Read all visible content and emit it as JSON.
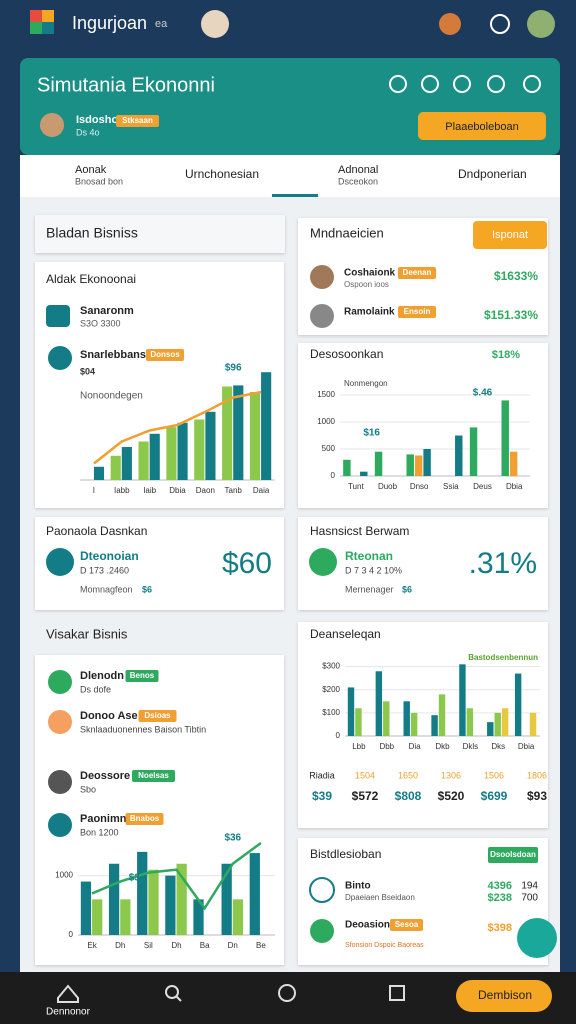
{
  "topbar": {
    "app_name": "Ingurjoan",
    "badge": "ea"
  },
  "header": {
    "title": "Simutania Ekononni",
    "user": "Isdoshon",
    "user_tag": "Stksaan",
    "user_sub": "Ds 4o",
    "button": "Plaaeboleboan"
  },
  "tabs": [
    {
      "label": "Aonak",
      "sub": "Bnosad bon"
    },
    {
      "label": "Urnchonesian"
    },
    {
      "label": "Adnonal",
      "sub": "Dsceokon"
    },
    {
      "label": "Dndponerian"
    }
  ],
  "left": {
    "section1": "Bladan Bisniss",
    "card1": {
      "title": "Aldak Ekonoonai",
      "items": [
        {
          "label": "Sanaronm",
          "sub": "S3O 3300"
        },
        {
          "label": "Snarlebbans",
          "tag": "Donsos",
          "sub": "$04"
        }
      ],
      "note": "Nonoondegen",
      "chart": {
        "type": "bar",
        "annotations": [
          "$96"
        ],
        "categories": [
          "I",
          "Iabb",
          "Iaib",
          "Dbia",
          "Daon",
          "Tanb",
          "Daia"
        ],
        "ylim": [
          0,
          100
        ],
        "series": [
          {
            "color": "#8cc84b",
            "values": [
              0,
              22,
              35,
              48,
              55,
              85,
              80
            ]
          },
          {
            "color": "#137c87",
            "values": [
              12,
              30,
              42,
              52,
              62,
              86,
              98
            ]
          },
          {
            "type": "line",
            "color": "#f0a030",
            "values": [
              15,
              35,
              45,
              50,
              62,
              75,
              80
            ]
          }
        ]
      }
    },
    "card2": {
      "title": "Paonaola Dasnkan",
      "label": "Dteonoian",
      "sub": "D 173 .2460",
      "note": "Momnagfeon",
      "note_tag": "$6",
      "big": "$60"
    },
    "section2": "Visakar Bisnis",
    "card3": {
      "items": [
        {
          "label": "Dlenodn",
          "tag": "Benos",
          "sub": "Ds dofe"
        },
        {
          "label": "Donoo Ase",
          "tag": "Dsioas",
          "sub": "Sknlaaduonennes Baison Tibtin"
        },
        {
          "label": "Deossore",
          "tag": "Noelsas",
          "sub": "Sbo"
        },
        {
          "label": "Paonimn",
          "tag": "Bnabos",
          "sub": "Bon 1200"
        }
      ],
      "chart": {
        "type": "bar",
        "annotations": [
          "$36",
          "$3"
        ],
        "categories": [
          "Ek",
          "Dh",
          "Sil",
          "Dh",
          "Ba",
          "Dn",
          "Be"
        ],
        "ylim": [
          0,
          1600
        ],
        "yticks": [
          0,
          1000
        ],
        "series": [
          {
            "color": "#137c87",
            "values": [
              900,
              1200,
              1400,
              1000,
              600,
              1200,
              1380
            ]
          },
          {
            "color": "#8cc84b",
            "values": [
              600,
              600,
              1100,
              1200,
              0,
              600,
              0
            ]
          },
          {
            "type": "line",
            "color": "#2eaa5f",
            "values": [
              700,
              900,
              1050,
              1100,
              450,
              1200,
              1550
            ]
          }
        ]
      }
    }
  },
  "right": {
    "card1": {
      "title": "Mndnaeicien",
      "button": "Isponat",
      "rows": [
        {
          "label": "Coshaionk",
          "tag": "Deenan",
          "sub": "Ospoon ioos",
          "value": "$1633%"
        },
        {
          "label": "Ramolaink",
          "tag": "Ensoin",
          "value": "$151.33%"
        }
      ]
    },
    "card2": {
      "title": "Desosoonkan",
      "value": "$18%",
      "note": "Nonmengon",
      "chart": {
        "type": "bar",
        "annotations": [
          "$.46",
          "$16"
        ],
        "categories": [
          "Tunt",
          "Duob",
          "Dnso",
          "Ssia",
          "Deus",
          "Dbia"
        ],
        "ylim": [
          0,
          1500
        ],
        "yticks": [
          0,
          500,
          1000,
          1500
        ],
        "series": [
          {
            "color": "#2eaa5f",
            "values": [
              300,
              450,
              400,
              0,
              900,
              1400
            ]
          },
          {
            "color": "#f0a030",
            "values": [
              0,
              0,
              380,
              0,
              0,
              450
            ]
          },
          {
            "color": "#137c87",
            "values": [
              80,
              0,
              500,
              750,
              0,
              0
            ]
          }
        ]
      }
    },
    "card3": {
      "title": "Hasnsicst Berwam",
      "label": "Rteonan",
      "sub": "D 7 3 4 2 10%",
      "note": "Mernenager",
      "note_tag": "$6",
      "big": ".31%"
    },
    "card4": {
      "title": "Deanseleqan",
      "note": "Bastodsenbennun",
      "chart": {
        "type": "bar",
        "categories": [
          "Lbb",
          "Dbb",
          "Dia",
          "Dkb",
          "Dkls",
          "Dks",
          "Dbia"
        ],
        "ylim": [
          0,
          320
        ],
        "yticks": [
          0,
          {
            "value": 100,
            "label": "$100"
          },
          {
            "value": 200,
            "label": "$200"
          },
          {
            "value": 300,
            "label": "$300"
          }
        ],
        "series": [
          {
            "color": "#137c87",
            "values": [
              210,
              280,
              150,
              90,
              310,
              60,
              270
            ]
          },
          {
            "color": "#8cc84b",
            "values": [
              120,
              150,
              100,
              180,
              120,
              100,
              0
            ]
          },
          {
            "color": "#e8c840",
            "values": [
              0,
              0,
              0,
              0,
              0,
              120,
              100
            ]
          }
        ]
      },
      "stat_labels": [
        "Riadia",
        "1504",
        "1650",
        "1306",
        "1506",
        "1806"
      ],
      "stat_values": [
        "$39",
        "$572",
        "$808",
        "$520",
        "$699",
        "$93"
      ]
    },
    "card5": {
      "title": "Bistdlesioban",
      "tag": "Dsoolsdoan",
      "rows": [
        {
          "label": "Binto",
          "sub": "Dpaeiaen Bseidaon",
          "value": "4396",
          "value2": "$238",
          "extra": "194",
          "extra2": "700"
        },
        {
          "label": "Deoasion",
          "tag": "Sesoa",
          "value": "$398",
          "sub": "Sfonsion Dspoic Baoreas"
        }
      ]
    }
  },
  "bottom_nav": {
    "home": "Dennonor",
    "button": "Dembison"
  }
}
